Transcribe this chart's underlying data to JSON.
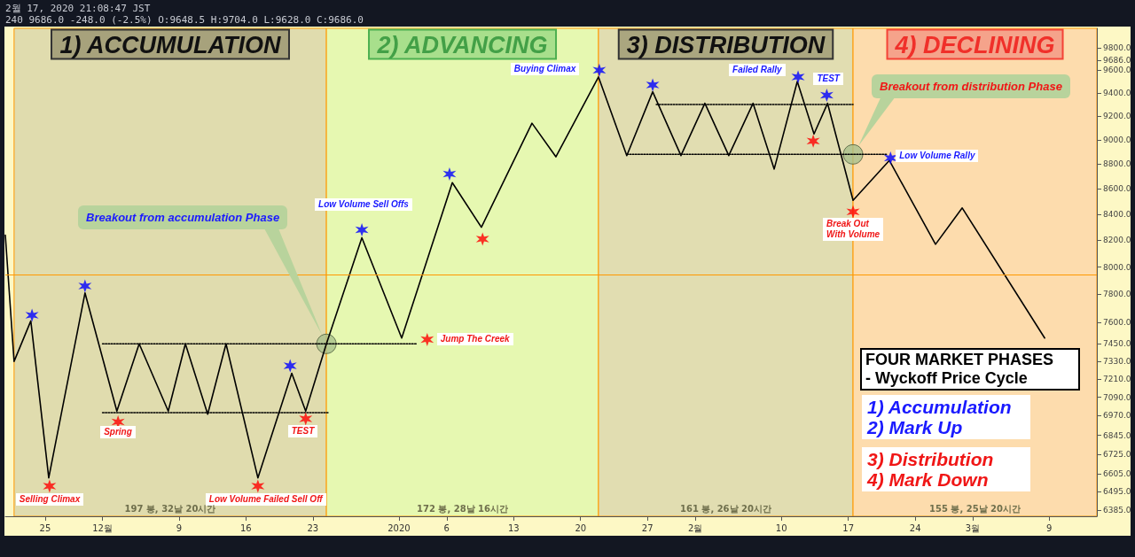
{
  "chart_data": {
    "type": "line",
    "log": "y",
    "xlim": [
      "2019-11-20T20:00",
      "2020-03-14T00:00"
    ],
    "xticks": [
      {
        "value": "2019-11-25",
        "label": "25"
      },
      {
        "value": "2019-12-01",
        "label": "12월"
      },
      {
        "value": "2019-12-09",
        "label": "9"
      },
      {
        "value": "2019-12-16",
        "label": "16"
      },
      {
        "value": "2019-12-23",
        "label": "23"
      },
      {
        "value": "2020-01-01",
        "label": "2020"
      },
      {
        "value": "2020-01-06",
        "label": "6"
      },
      {
        "value": "2020-01-13",
        "label": "13"
      },
      {
        "value": "2020-01-20",
        "label": "20"
      },
      {
        "value": "2020-01-27",
        "label": "27"
      },
      {
        "value": "2020-02-01",
        "label": "2월"
      },
      {
        "value": "2020-02-10",
        "label": "10"
      },
      {
        "value": "2020-02-17",
        "label": "17"
      },
      {
        "value": "2020-02-24",
        "label": "24"
      },
      {
        "value": "2020-03-01",
        "label": "3월"
      },
      {
        "value": "2020-03-09",
        "label": "9"
      }
    ],
    "ylim": [
      6350,
      9980
    ],
    "yticks": [
      {
        "value": 6385,
        "label": "6385.0"
      },
      {
        "value": 6495,
        "label": "6495.0"
      },
      {
        "value": 6605,
        "label": "6605.0"
      },
      {
        "value": 6725,
        "label": "6725.0"
      },
      {
        "value": 6845,
        "label": "6845.0"
      },
      {
        "value": 6970,
        "label": "6970.0"
      },
      {
        "value": 7090,
        "label": "7090.0"
      },
      {
        "value": 7210,
        "label": "7210.0"
      },
      {
        "value": 7330,
        "label": "7330.0"
      },
      {
        "value": 7450,
        "label": "7450.0"
      },
      {
        "value": 7600,
        "label": "7600.0"
      },
      {
        "value": 7800,
        "label": "7800.0"
      },
      {
        "value": 8000,
        "label": "8000.0"
      },
      {
        "value": 8200,
        "label": "8200.0"
      },
      {
        "value": 8400,
        "label": "8400.0"
      },
      {
        "value": 8600,
        "label": "8600.0"
      },
      {
        "value": 8800,
        "label": "8800.0"
      },
      {
        "value": 9000,
        "label": "9000.0"
      },
      {
        "value": 9200,
        "label": "9200.0"
      },
      {
        "value": 9400,
        "label": "9400.0"
      },
      {
        "value": 9600,
        "label": "9600.0"
      },
      {
        "value": 9686,
        "label": "9686.0"
      },
      {
        "value": 9800,
        "label": "9800.0"
      }
    ],
    "series": [
      {
        "color": "#000000",
        "marker": "none",
        "line_style": "solid",
        "x": [
          "2019-11-20T20:00",
          "2019-11-21T18:00",
          "2019-11-23T12:00",
          "2019-11-25T09:00",
          "2019-11-29T04:00",
          "2019-12-02T12:00",
          "2019-12-04T20:00",
          "2019-12-07T21:00",
          "2019-12-09T16:00",
          "2019-12-12T00:00",
          "2019-12-13T22:00",
          "2019-12-17T06:00",
          "2019-12-20T19:00",
          "2019-12-22T06:00",
          "2019-12-24T10:00",
          "2019-12-28T03:00",
          "2020-01-01T07:00",
          "2020-01-06T14:00",
          "2020-01-09T15:00",
          "2020-01-14T22:00",
          "2020-01-17T10:00",
          "2020-01-21T21:00",
          "2020-01-24T20:00",
          "2020-01-27T13:00",
          "2020-01-30T12:00",
          "2020-02-02T00:00",
          "2020-02-04T12:00",
          "2020-02-07T01:00",
          "2020-02-09T06:00",
          "2020-02-11T16:00",
          "2020-02-13T10:00",
          "2020-02-14T20:00",
          "2020-02-17T12:00",
          "2020-02-21T07:00",
          "2020-02-26T03:00",
          "2020-02-28T22:00",
          "2020-03-08T13:00"
        ],
        "values": [
          8240,
          7330,
          7610,
          6580,
          7810,
          7000,
          7450,
          7000,
          7450,
          6980,
          7450,
          6580,
          7250,
          7000,
          7450,
          8220,
          7490,
          8650,
          8300,
          9140,
          8860,
          9540,
          8870,
          9410,
          8870,
          9310,
          8870,
          9310,
          8760,
          9500,
          9050,
          9310,
          8510,
          8830,
          8170,
          8450,
          7490
        ]
      },
      {
        "color": "#000000",
        "marker": "none",
        "line_style": "dotted",
        "x": [
          "2019-12-01T00:00",
          "2020-01-02T21:00"
        ],
        "values": [
          7450,
          7450
        ]
      },
      {
        "color": "#000000",
        "marker": "none",
        "line_style": "dotted",
        "x": [
          "2019-12-01T00:00",
          "2019-12-24T14:00"
        ],
        "values": [
          6990,
          6990
        ]
      },
      {
        "color": "#000000",
        "marker": "none",
        "line_style": "dotted",
        "x": [
          "2020-01-27T22:00",
          "2020-02-17T12:00"
        ],
        "values": [
          9300,
          9300
        ]
      },
      {
        "color": "#000000",
        "marker": "none",
        "line_style": "dotted",
        "x": [
          "2020-01-24T20:00",
          "2020-02-21T01:00"
        ],
        "values": [
          8880,
          8880
        ]
      },
      {
        "type": "scatter",
        "color": "#0000ff",
        "marker": "cross",
        "x": [
          "2019-11-23T15:00",
          "2019-11-29T04:00",
          "2019-12-20T15:00",
          "2019-12-28T03:00",
          "2020-01-06T07:00",
          "2020-01-21T23:00",
          "2020-01-27T13:00",
          "2020-02-11T18:00",
          "2020-02-14T18:00",
          "2020-02-21T10:00"
        ],
        "values": [
          7650,
          7860,
          7300,
          8280,
          8720,
          9600,
          9470,
          9540,
          9380,
          8850
        ]
      },
      {
        "type": "scatter",
        "color": "#ff0000",
        "marker": "cross",
        "x": [
          "2019-11-25T11:00",
          "2019-12-02T15:00",
          "2019-12-17T06:00",
          "2019-12-22T06:00",
          "2020-01-03T23:00",
          "2020-01-09T18:00",
          "2020-02-13T08:00",
          "2020-02-17T12:00"
        ],
        "values": [
          6530,
          6930,
          6530,
          6950,
          7480,
          8210,
          8990,
          8420
        ]
      },
      {
        "type": "scatter",
        "color": "#a9c08c",
        "marker": "circle",
        "x": [
          "2019-12-24T10:00",
          "2020-02-17T12:00"
        ],
        "values": [
          7450,
          8880
        ]
      }
    ],
    "bands": [
      {
        "axis": "x",
        "from": "2019-11-21T18:00",
        "to": "2019-12-24T10:00",
        "label": "1) ACCUMULATION",
        "color": "#e0dcae"
      },
      {
        "axis": "x",
        "from": "2019-12-24T10:00",
        "to": "2020-01-21T21:00",
        "label": "2) ADVANCING",
        "color": "#e6f8b1"
      },
      {
        "axis": "x",
        "from": "2020-01-21T21:00",
        "to": "2020-02-17T12:00",
        "label": "3) DISTRIBUTION",
        "color": "#e1ddb1"
      },
      {
        "axis": "x",
        "from": "2020-02-17T12:00",
        "to": "2020-03-14T00:00",
        "label": "4) DECLINING",
        "color": "#fddcad"
      }
    ],
    "ref_lines": [
      {
        "axis": "y",
        "value": 7945,
        "color": "#ff9800",
        "line_style": "solid"
      }
    ],
    "annotations": [
      "2월 17, 2020 21:08:47 JST",
      "240 9686.0 -248.0 (-2.5%) O:9648.5 H:9704.0 L:9628.0 C:9686.0",
      {
        "text": "Selling Climax",
        "x": "2019-11-25T11:00",
        "y": 6530
      },
      {
        "text": "Spring",
        "x": "2019-12-02T15:00",
        "y": 6930
      },
      {
        "text": "Low Volume Failed Sell Off",
        "x": "2019-12-17T06:00",
        "y": 6530
      },
      {
        "text": "TEST",
        "x": "2019-12-22T06:00",
        "y": 6950
      },
      "Breakout from accumulation Phase",
      {
        "text": "Low Volume Sell Offs",
        "x": "2019-12-28T03:00",
        "y": 8280
      },
      {
        "text": "Jump The Creek",
        "x": "2020-01-03T23:00",
        "y": 7480
      },
      {
        "text": "Buying Climax",
        "x": "2020-01-21T23:00",
        "y": 9600
      },
      {
        "text": "Failed Rally",
        "x": "2020-02-11T18:00",
        "y": 9540
      },
      {
        "text": "TEST",
        "x": "2020-02-14T18:00",
        "y": 9380
      },
      "Breakout from distribution Phase",
      {
        "text": "Break Out\nWith Volume",
        "x": "2020-02-17T12:00",
        "y": 8420
      },
      {
        "text": "Low Volume Rally",
        "x": "2020-02-21T10:00",
        "y": 8850
      },
      "197 봉, 32날 20시간",
      "172 봉, 28날 16시간",
      "161 봉, 26날 20시간",
      "155 봉, 25날 20시간",
      "FOUR MARKET PHASES\n- Wyckoff Price Cycle",
      "1) Accumulation\n2) Mark Up",
      "3) Distribution\n4) Mark Down"
    ]
  }
}
